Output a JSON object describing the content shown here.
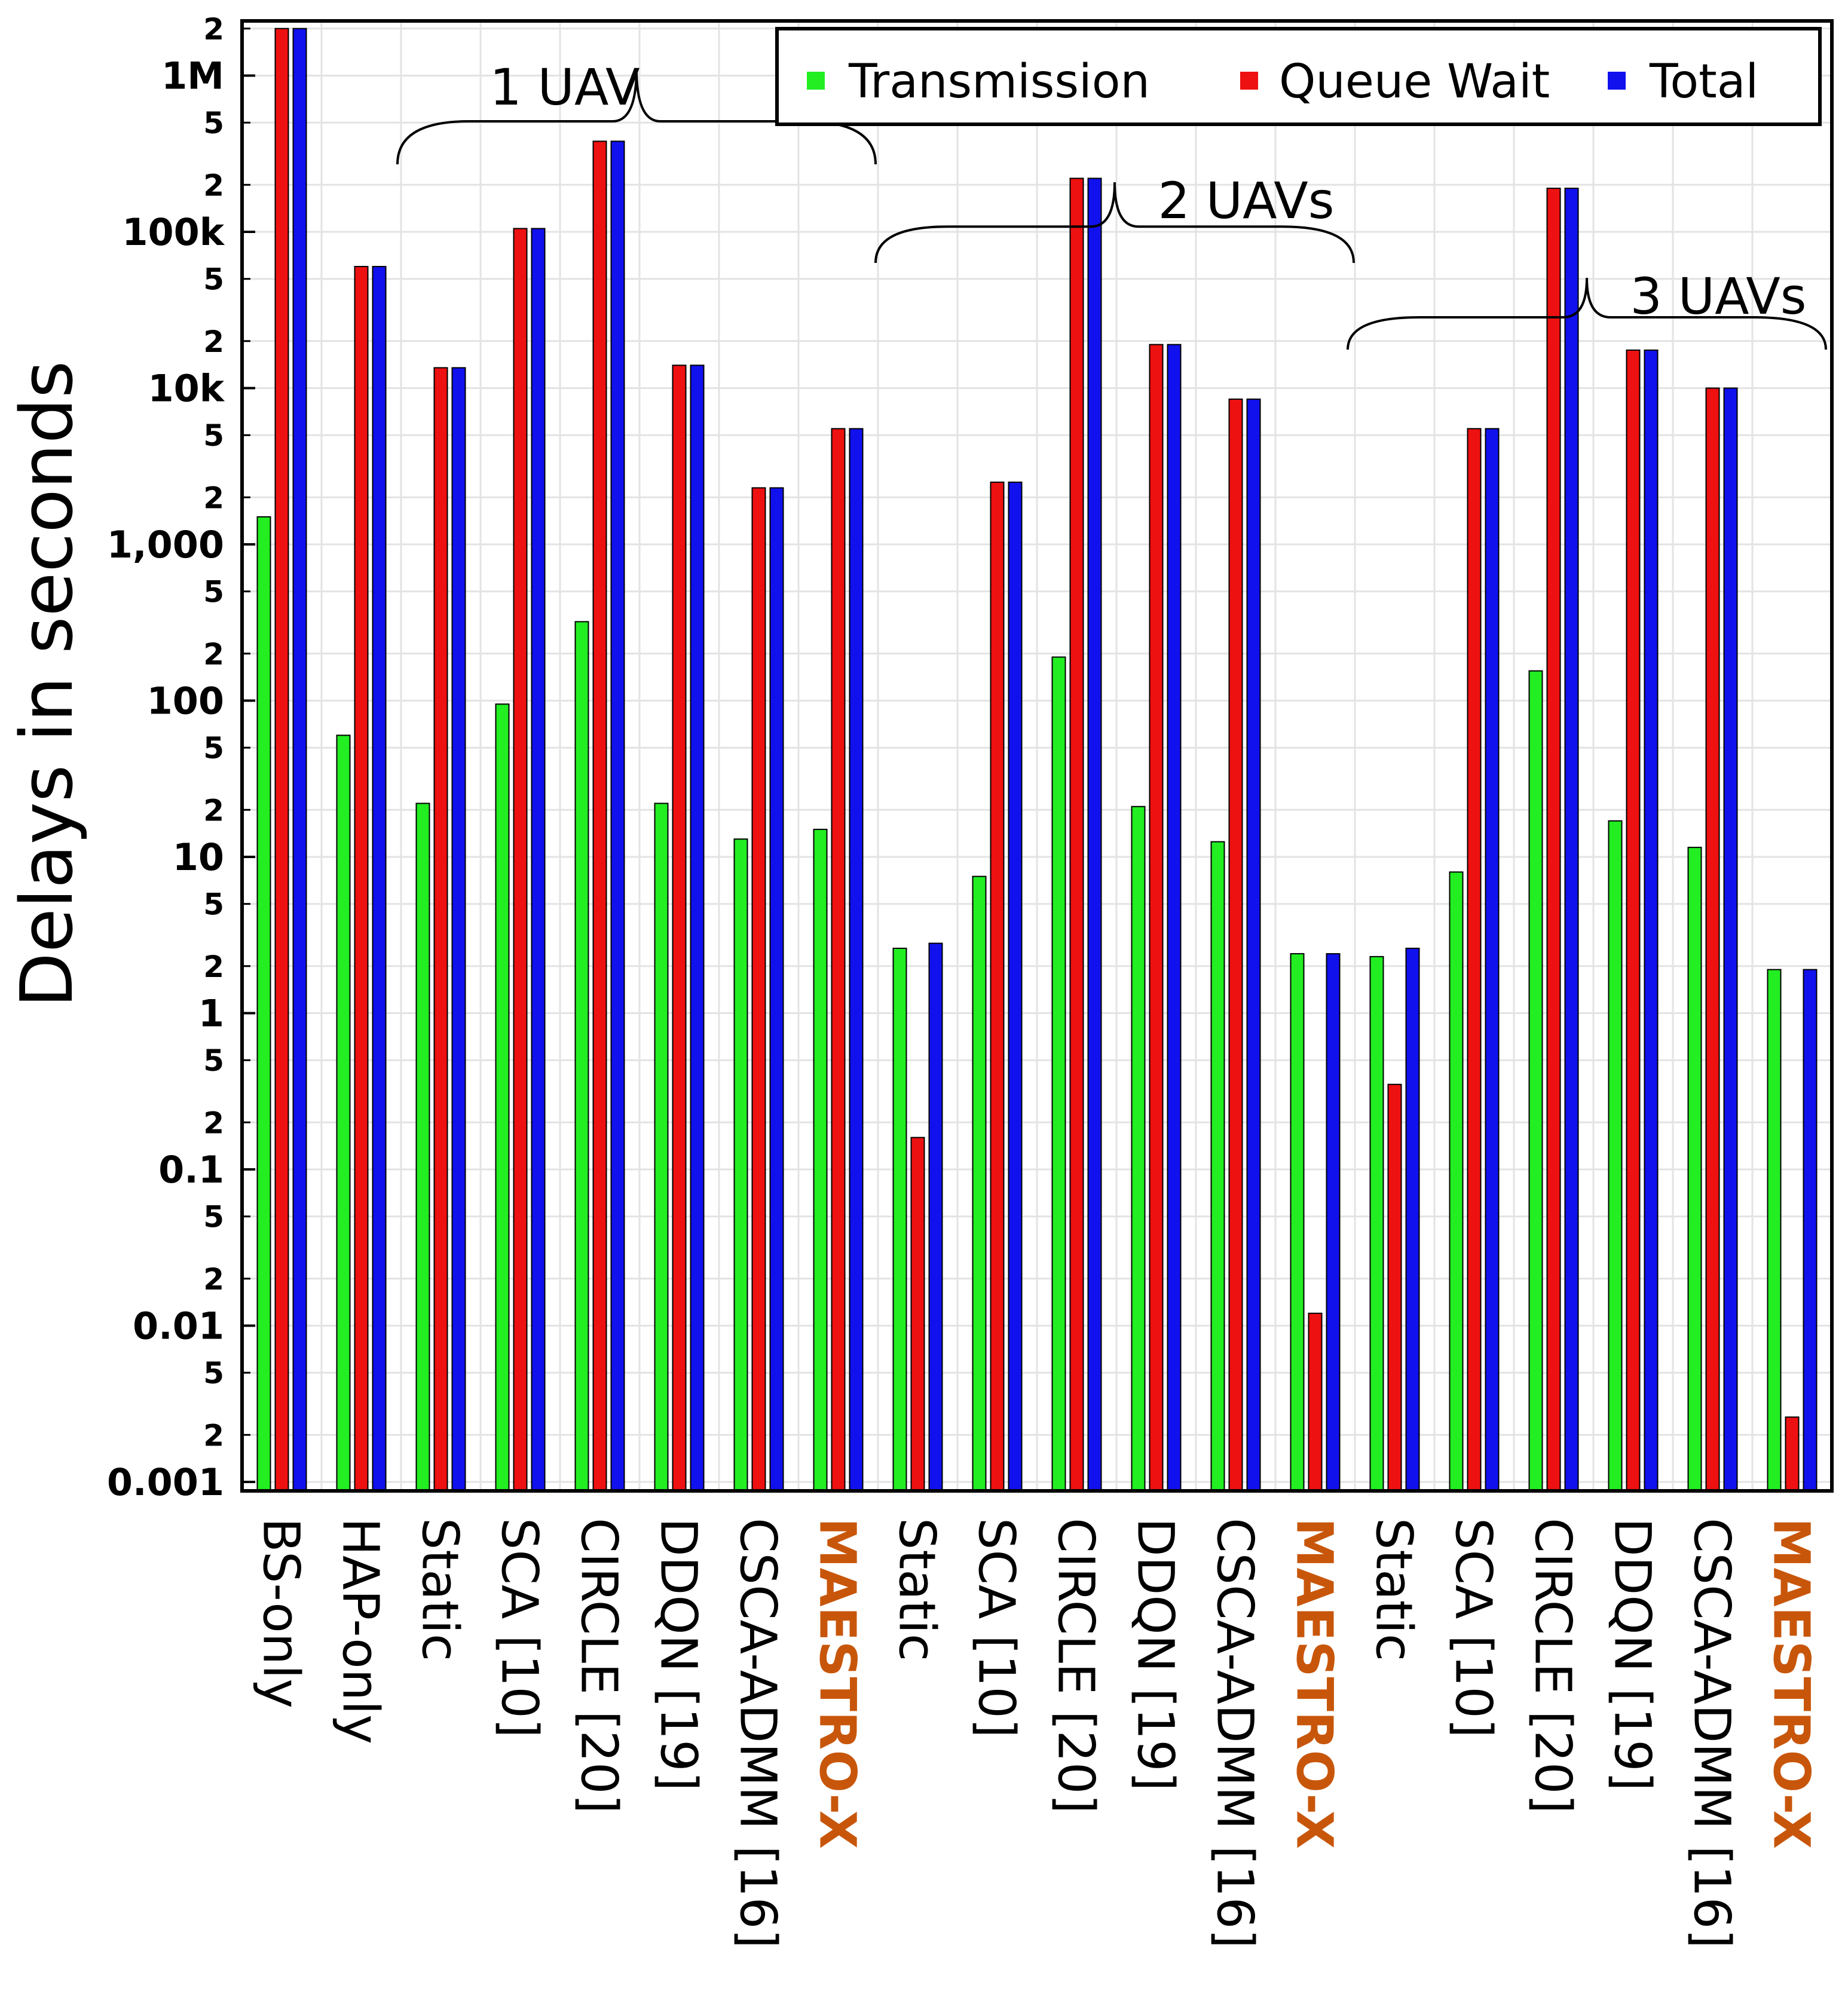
{
  "chart_data": {
    "type": "bar",
    "title": "",
    "xlabel": "",
    "ylabel": "Delays in seconds",
    "yscale": "log",
    "ylim": [
      0.001,
      2000000
    ],
    "grid": true,
    "legend_position": "top-right",
    "categories": [
      "BS-only",
      "HAP-only",
      "Static",
      "SCA [10]",
      "CIRCLE [20]",
      "DDQN [19]",
      "CSCA-ADMM [16]",
      "MAESTRO-X",
      "Static",
      "SCA [10]",
      "CIRCLE [20]",
      "DDQN [19]",
      "CSCA-ADMM [16]",
      "MAESTRO-X",
      "Static",
      "SCA [10]",
      "CIRCLE [20]",
      "DDQN [19]",
      "CSCA-ADMM [16]",
      "MAESTRO-X"
    ],
    "highlighted_category": "MAESTRO-X",
    "highlight_color": "#c8560a",
    "yticks_major": [
      "0.001",
      "0.01",
      "0.1",
      "1",
      "10",
      "100",
      "1,000",
      "10k",
      "100k",
      "1M"
    ],
    "yticks_minor": [
      "2",
      "5"
    ],
    "groups": [
      {
        "label": "1 UAV",
        "first": 2,
        "last": 7
      },
      {
        "label": "2 UAVs",
        "first": 8,
        "last": 13
      },
      {
        "label": "3 UAVs",
        "first": 14,
        "last": 19
      }
    ],
    "series": [
      {
        "name": "Transmission",
        "color": "#22ee22",
        "values": [
          1500,
          60,
          22,
          95,
          320,
          22,
          13,
          15,
          2.6,
          7.5,
          190,
          21,
          12.5,
          2.4,
          2.3,
          8,
          155,
          17,
          11.5,
          1.9
        ]
      },
      {
        "name": "Queue Wait",
        "color": "#ee1111",
        "values": [
          2000000,
          60000,
          13500,
          105000,
          380000,
          14000,
          2300,
          5500,
          0.16,
          2500,
          220000,
          19000,
          8500,
          0.012,
          0.35,
          5500,
          190000,
          17500,
          10000,
          0.0026
        ]
      },
      {
        "name": "Total",
        "color": "#1111ee",
        "values": [
          2000000,
          60000,
          13500,
          105000,
          380000,
          14000,
          2300,
          5500,
          2.8,
          2500,
          220000,
          19000,
          8500,
          2.4,
          2.6,
          5500,
          190000,
          17500,
          10000,
          1.9
        ]
      }
    ]
  }
}
